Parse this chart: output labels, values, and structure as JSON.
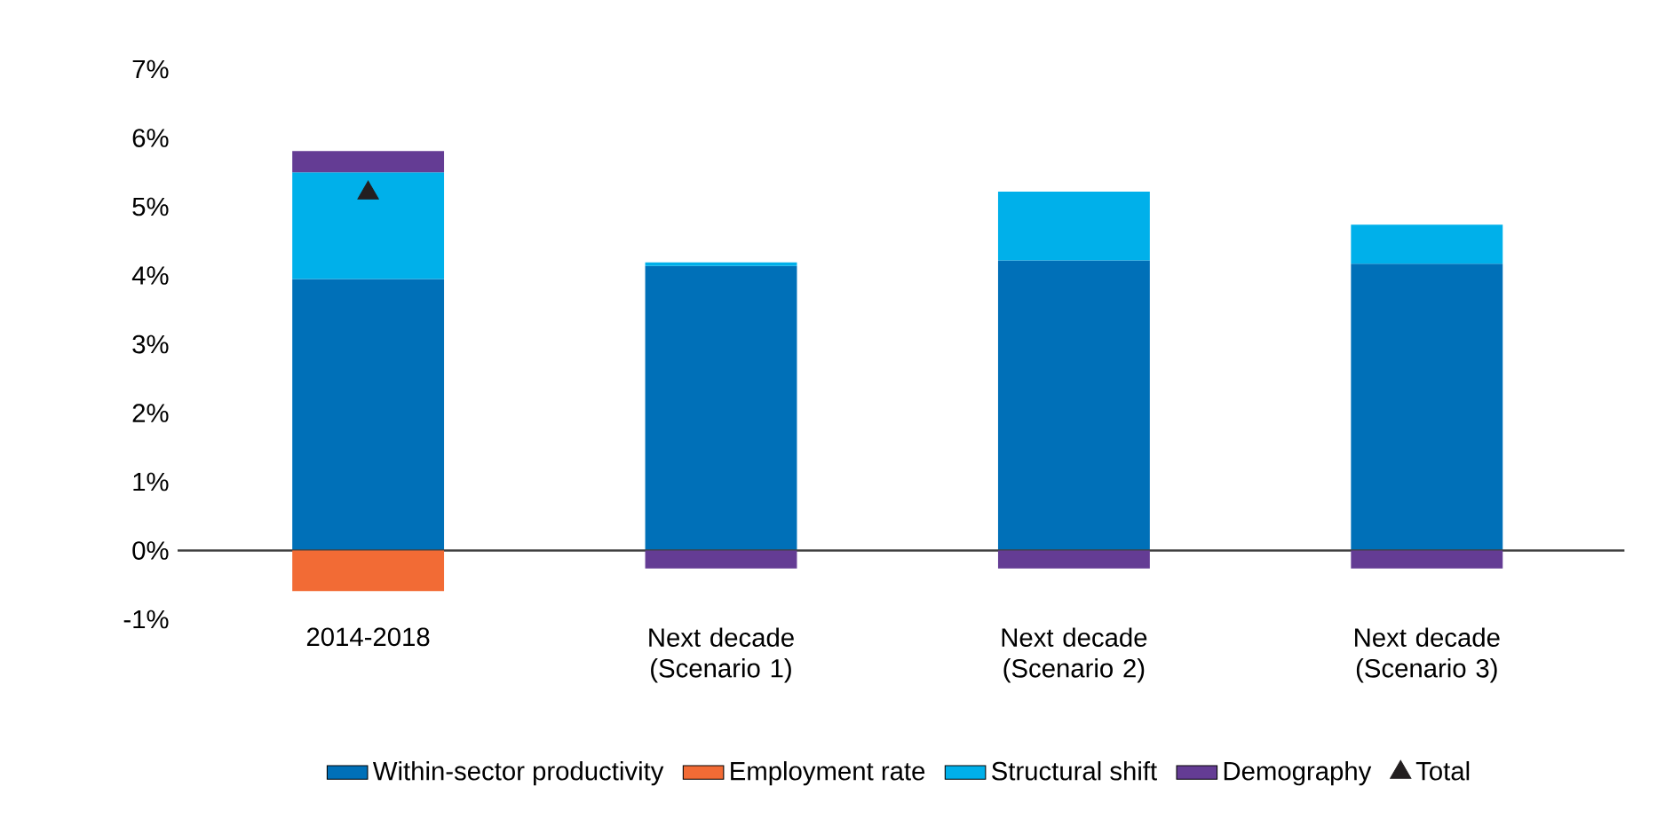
{
  "chart_data": {
    "type": "bar",
    "stacked": true,
    "categories": [
      "2014-2018",
      "Next decade (Scenario 1)",
      "Next decade (Scenario 2)",
      "Next decade (Scenario 3)"
    ],
    "series": [
      {
        "name": "Within-sector productivity",
        "color": "#0070b8",
        "values": [
          3.95,
          4.14,
          4.22,
          4.17
        ]
      },
      {
        "name": "Employment rate",
        "color": "#f26b35",
        "values": [
          -0.59,
          null,
          null,
          null
        ]
      },
      {
        "name": "Structural shift",
        "color": "#00b0ea",
        "values": [
          1.55,
          0.05,
          1.0,
          0.57
        ]
      },
      {
        "name": "Demography",
        "color": "#643c94",
        "values": [
          0.31,
          -0.26,
          -0.26,
          -0.26
        ]
      },
      {
        "name": "Total",
        "type": "scatter",
        "marker": "triangle",
        "color": "#231f20",
        "values": [
          5.2,
          null,
          null,
          null
        ]
      }
    ],
    "ylim": [
      -1,
      7
    ],
    "yticks": [
      {
        "value": -1,
        "label": "-1%"
      },
      {
        "value": 0,
        "label": "0%"
      },
      {
        "value": 1,
        "label": "1%"
      },
      {
        "value": 2,
        "label": "2%"
      },
      {
        "value": 3,
        "label": "3%"
      },
      {
        "value": 4,
        "label": "4%"
      },
      {
        "value": 5,
        "label": "5%"
      },
      {
        "value": 6,
        "label": "6%"
      },
      {
        "value": 7,
        "label": "7%"
      }
    ],
    "legend": "bottom"
  }
}
